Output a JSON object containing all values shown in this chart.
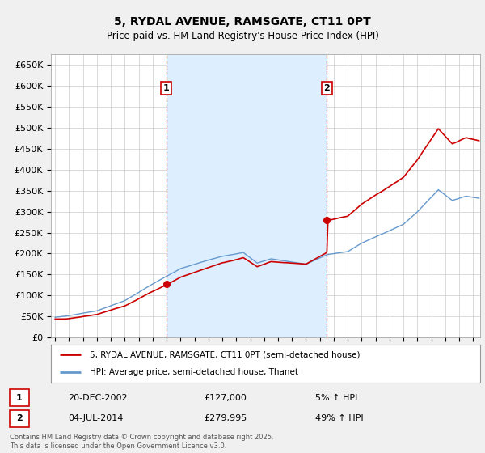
{
  "title": "5, RYDAL AVENUE, RAMSGATE, CT11 0PT",
  "subtitle": "Price paid vs. HM Land Registry's House Price Index (HPI)",
  "ylim": [
    0,
    675000
  ],
  "yticks": [
    0,
    50000,
    100000,
    150000,
    200000,
    250000,
    300000,
    350000,
    400000,
    450000,
    500000,
    550000,
    600000,
    650000
  ],
  "xlim_start": 1994.7,
  "xlim_end": 2025.5,
  "sale1_x": 2002.97,
  "sale1_y": 127000,
  "sale1_label": "1",
  "sale1_date": "20-DEC-2002",
  "sale1_price": "£127,000",
  "sale1_hpi": "5% ↑ HPI",
  "sale2_x": 2014.5,
  "sale2_y": 279995,
  "sale2_label": "2",
  "sale2_date": "04-JUL-2014",
  "sale2_price": "£279,995",
  "sale2_hpi": "49% ↑ HPI",
  "line1_color": "#cc0000",
  "line2_color": "#6699cc",
  "shade_color": "#ddeeff",
  "legend1": "5, RYDAL AVENUE, RAMSGATE, CT11 0PT (semi-detached house)",
  "legend2": "HPI: Average price, semi-detached house, Thanet",
  "footer": "Contains HM Land Registry data © Crown copyright and database right 2025.\nThis data is licensed under the Open Government Licence v3.0.",
  "bg_color": "#f0f0f0",
  "plot_bg_color": "#ffffff",
  "grid_color": "#cccccc"
}
